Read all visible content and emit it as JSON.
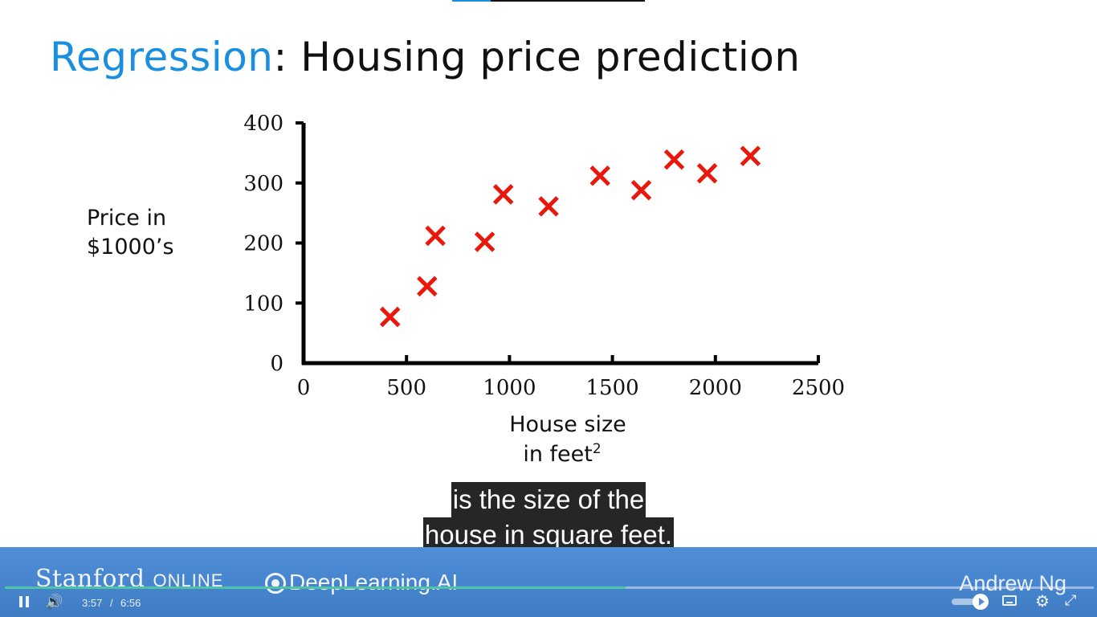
{
  "slide": {
    "title_highlight": "Regression",
    "title_rest": ": Housing price prediction"
  },
  "chart_data": {
    "type": "scatter",
    "ylabel_lines": [
      "Price in",
      "$1000’s"
    ],
    "xlabel_line1": "House size",
    "xlabel_line2": "in feet",
    "xlabel_superscript": "2",
    "xlim": [
      0,
      2500
    ],
    "ylim": [
      0,
      400
    ],
    "xticks": [
      0,
      500,
      1000,
      1500,
      2000,
      2500
    ],
    "yticks": [
      0,
      100,
      200,
      300,
      400
    ],
    "marker": "x",
    "marker_color": "#e8180c",
    "points": [
      {
        "x": 420,
        "y": 77
      },
      {
        "x": 600,
        "y": 128
      },
      {
        "x": 640,
        "y": 212
      },
      {
        "x": 880,
        "y": 202
      },
      {
        "x": 970,
        "y": 281
      },
      {
        "x": 1190,
        "y": 261
      },
      {
        "x": 1440,
        "y": 312
      },
      {
        "x": 1640,
        "y": 288
      },
      {
        "x": 1800,
        "y": 339
      },
      {
        "x": 1960,
        "y": 316
      },
      {
        "x": 2170,
        "y": 345
      }
    ]
  },
  "captions": {
    "line1": "is the size of the",
    "line2": "house in square feet."
  },
  "player": {
    "brand_stanford": "Stanford",
    "brand_online": "ONLINE",
    "brand_deeplearning": "DeepLearning.AI",
    "instructor": "Andrew Ng",
    "time_current": "3:57",
    "time_separator": "/",
    "time_total": "6:56",
    "progress_fraction": 0.57
  },
  "colors": {
    "accent": "#1a8fe0",
    "player_bg": "#4a88d0",
    "progress": "#4fc2a8"
  },
  "icons": {
    "pause": "pause-icon",
    "volume": "volume-icon",
    "speed": "speed-slider-icon",
    "captions": "captions-icon",
    "settings": "gear-icon",
    "fullscreen": "exit-fullscreen-icon"
  }
}
